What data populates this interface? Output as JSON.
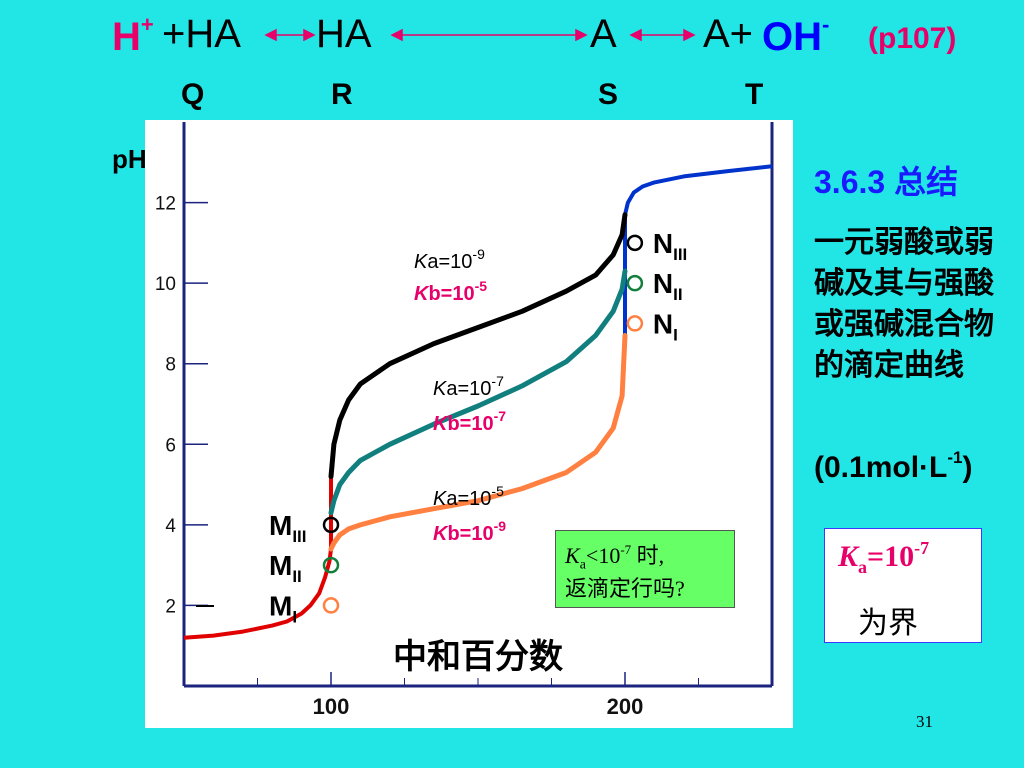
{
  "equation": {
    "h": "H",
    "h_sup": "+",
    "plus_ha": "+HA",
    "ha": "HA",
    "a": "A",
    "a_plus": "A+",
    "oh": "OH",
    "oh_sup": "-",
    "page_ref": "(p107)"
  },
  "point_labels": [
    "Q",
    "R",
    "S",
    "T"
  ],
  "section": {
    "title": "3.6.3 总结",
    "summary": "一元弱酸或弱碱及其与强酸或强碱混合物的滴定曲线",
    "conc_base": "(0.1mol·L",
    "conc_sup": "-1",
    "conc_end": ")"
  },
  "ka_box": {
    "k": "K",
    "sub": "a",
    "eq": "=10",
    "sup": "-7",
    "limit": "为界"
  },
  "question": {
    "k": "K",
    "sub": "a",
    "lt": "<10",
    "sup": "-7",
    "tail": " 时,",
    "line2": "返滴定行吗?"
  },
  "page_number": "31",
  "chart_data": {
    "type": "line",
    "ylabel": "pH",
    "xlabel": "中和百分数",
    "x_ticks": [
      "100",
      "200"
    ],
    "y_ticks": [
      "2",
      "4",
      "6",
      "8",
      "10",
      "12"
    ],
    "xlim": [
      50,
      250
    ],
    "ylim": [
      0,
      14
    ],
    "segments": [
      {
        "color": "#e00000",
        "x": [
          50,
          60,
          70,
          80,
          85,
          90,
          93,
          96,
          98,
          99.5,
          100
        ],
        "y": [
          1.2,
          1.25,
          1.35,
          1.5,
          1.6,
          1.8,
          2.0,
          2.3,
          2.7,
          3.1,
          3.4
        ]
      },
      {
        "color": "#e00000",
        "x": [
          100,
          100
        ],
        "y": [
          3.4,
          5.2
        ]
      },
      {
        "color": "#0033cc",
        "x": [
          200,
          200
        ],
        "y": [
          8.7,
          11.7
        ]
      },
      {
        "color": "#0033cc",
        "x": [
          200,
          201,
          203,
          206,
          210,
          220,
          235,
          250
        ],
        "y": [
          11.7,
          12.0,
          12.25,
          12.4,
          12.5,
          12.65,
          12.78,
          12.9
        ]
      }
    ],
    "series": [
      {
        "name": "Ka=10-9, Kb=10-5",
        "color": "#000000",
        "x": [
          100,
          101,
          103,
          106,
          110,
          120,
          135,
          150,
          165,
          180,
          190,
          196,
          199,
          200
        ],
        "y": [
          5.2,
          6.0,
          6.6,
          7.1,
          7.5,
          8.0,
          8.5,
          8.9,
          9.3,
          9.8,
          10.2,
          10.7,
          11.2,
          11.7
        ]
      },
      {
        "name": "Ka=10-7, Kb=10-7",
        "color": "#127f7f",
        "x": [
          100,
          101,
          103,
          106,
          110,
          120,
          135,
          150,
          165,
          180,
          190,
          196,
          199,
          200
        ],
        "y": [
          4.3,
          4.6,
          5.0,
          5.3,
          5.6,
          6.0,
          6.5,
          6.95,
          7.45,
          8.05,
          8.7,
          9.3,
          9.85,
          10.3
        ]
      },
      {
        "name": "Ka=10-5, Kb=10-9",
        "color": "#ff8040",
        "x": [
          100,
          101,
          103,
          106,
          110,
          120,
          135,
          150,
          165,
          180,
          190,
          196,
          199,
          200
        ],
        "y": [
          3.4,
          3.55,
          3.75,
          3.9,
          4.0,
          4.2,
          4.4,
          4.6,
          4.9,
          5.3,
          5.8,
          6.4,
          7.2,
          8.7
        ]
      }
    ],
    "curve_labels": [
      {
        "ka": "Ka=10",
        "ka_exp": "-9",
        "kb": "Kb=10",
        "kb_exp": "-5"
      },
      {
        "ka": "Ka=10",
        "ka_exp": "-7",
        "kb": "Kb=10",
        "kb_exp": "-7"
      },
      {
        "ka": "Ka=10",
        "ka_exp": "-5",
        "kb": "Kb=10",
        "kb_exp": "-9"
      }
    ],
    "m_points": [
      {
        "label": "M",
        "sub": "III",
        "color": "#000000",
        "x": 100,
        "y": 4.0
      },
      {
        "label": "M",
        "sub": "II",
        "color": "#127f3a",
        "x": 100,
        "y": 3.0
      },
      {
        "label": "M",
        "sub": "I",
        "color": "#ff8040",
        "x": 100,
        "y": 2.0
      }
    ],
    "n_points": [
      {
        "label": "N",
        "sub": "III",
        "color": "#000000",
        "x": 202,
        "y": 11.0
      },
      {
        "label": "N",
        "sub": "II",
        "color": "#127f3a",
        "x": 202,
        "y": 10.0
      },
      {
        "label": "N",
        "sub": "I",
        "color": "#ff8040",
        "x": 202,
        "y": 9.0
      }
    ]
  }
}
